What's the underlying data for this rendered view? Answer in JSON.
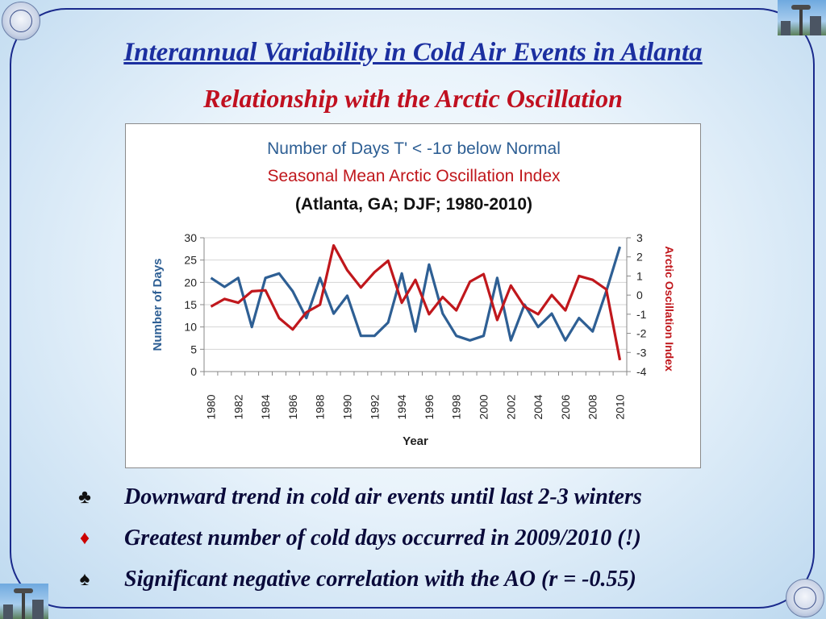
{
  "slide": {
    "title": "Interannual Variability in Cold Air Events in Atlanta",
    "subtitle": "Relationship with the Arctic Oscillation",
    "bullets": [
      {
        "symbol": "♣",
        "symbol_color": "#111111",
        "text": "Downward trend in cold air events until last 2-3 winters"
      },
      {
        "symbol": "♦",
        "symbol_color": "#cc0000",
        "text": "Greatest number of cold days occurred in 2009/2010 (!)"
      },
      {
        "symbol": "♠",
        "symbol_color": "#111111",
        "text": "Significant negative correlation with the AO (r = -0.55)"
      }
    ]
  },
  "chart_data": {
    "type": "line",
    "title_lines": [
      {
        "text": "Number of Days T' < -1σ below Normal",
        "color": "#2e5f94"
      },
      {
        "text": "Seasonal Mean Arctic Oscillation Index",
        "color": "#c0171c"
      },
      {
        "text": "(Atlanta, GA; DJF; 1980-2010)",
        "color": "#111111"
      }
    ],
    "xlabel": "Year",
    "ylabel_left": "Number of Days",
    "ylabel_right": "Arctic Oscillation Index",
    "ylim_left": [
      0,
      30
    ],
    "ylim_right": [
      -4,
      3
    ],
    "yticks_left": [
      0,
      5,
      10,
      15,
      20,
      25,
      30
    ],
    "yticks_right": [
      -4,
      -3,
      -2,
      -1,
      0,
      1,
      2,
      3
    ],
    "xticks": [
      1980,
      1982,
      1984,
      1986,
      1988,
      1990,
      1992,
      1994,
      1996,
      1998,
      2000,
      2002,
      2004,
      2006,
      2008,
      2010
    ],
    "grid": "horizontal",
    "x": [
      1980,
      1981,
      1982,
      1983,
      1984,
      1985,
      1986,
      1987,
      1988,
      1989,
      1990,
      1991,
      1992,
      1993,
      1994,
      1995,
      1996,
      1997,
      1998,
      1999,
      2000,
      2001,
      2002,
      2003,
      2004,
      2005,
      2006,
      2007,
      2008,
      2009,
      2010
    ],
    "series": [
      {
        "name": "Number of Days",
        "axis": "left",
        "color": "#2e5f94",
        "values": [
          21,
          19,
          21,
          10,
          21,
          22,
          18,
          12,
          21,
          13,
          17,
          8,
          8,
          11,
          22,
          9,
          24,
          13,
          8,
          7,
          8,
          21,
          7,
          15,
          10,
          13,
          7,
          12,
          9,
          18,
          28
        ]
      },
      {
        "name": "Arctic Oscillation Index",
        "axis": "right",
        "color": "#c0171c",
        "values": [
          -0.6,
          -0.2,
          -0.4,
          0.2,
          0.25,
          -1.2,
          -1.8,
          -0.9,
          -0.5,
          2.6,
          1.3,
          0.4,
          1.2,
          1.8,
          -0.4,
          0.8,
          -1.0,
          -0.1,
          -0.8,
          0.7,
          1.1,
          -1.3,
          0.5,
          -0.6,
          -1.0,
          0.0,
          -0.8,
          1.0,
          0.8,
          0.3,
          -3.4
        ]
      }
    ]
  }
}
